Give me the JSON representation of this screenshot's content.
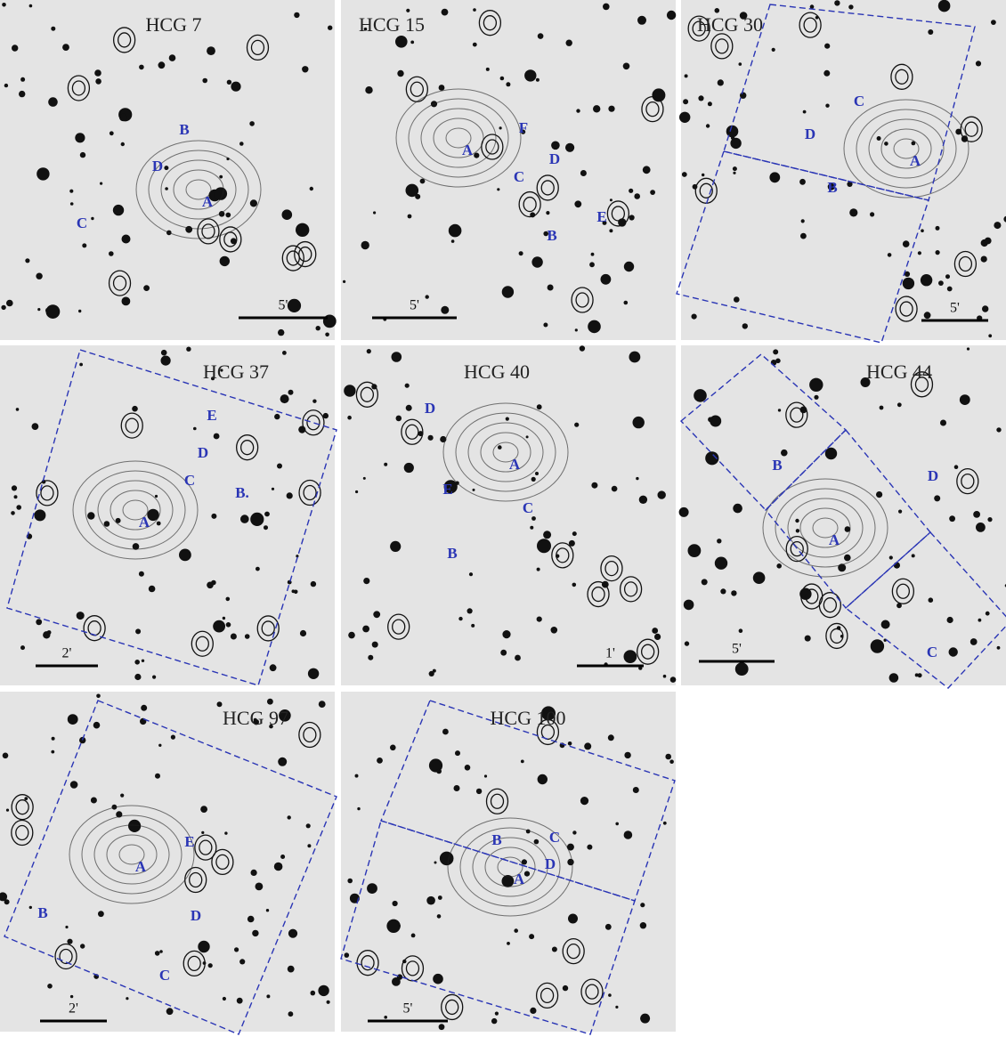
{
  "panels": [
    {
      "title": "HCG 7",
      "scale": "5'",
      "labels": [
        "A",
        "B",
        "C",
        "D"
      ]
    },
    {
      "title": "HCG 15",
      "scale": "5'",
      "labels": [
        "A",
        "B",
        "C",
        "D",
        "E",
        "F"
      ]
    },
    {
      "title": "HCG 30",
      "scale": "5'",
      "labels": [
        "A",
        "B",
        "C",
        "D"
      ]
    },
    {
      "title": "HCG 37",
      "scale": "2'",
      "labels": [
        "A",
        "B.",
        "C",
        "D",
        "E"
      ]
    },
    {
      "title": "HCG 40",
      "scale": "1'",
      "labels": [
        "A",
        "B",
        "C",
        "D",
        "E"
      ]
    },
    {
      "title": "HCG 44",
      "scale": "5'",
      "labels": [
        "A",
        "B",
        "C",
        "D"
      ]
    },
    {
      "title": "HCG 97",
      "scale": "2'",
      "labels": [
        "A",
        "B",
        "C",
        "D",
        "E"
      ]
    },
    {
      "title": "HCG 100",
      "scale": "5'",
      "labels": [
        "A",
        "B",
        "C",
        "D"
      ]
    }
  ]
}
